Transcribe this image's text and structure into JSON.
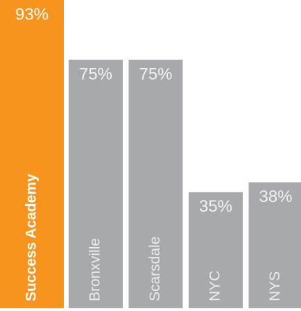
{
  "chart_data": {
    "type": "bar",
    "categories": [
      "Success Academy",
      "Bronxville",
      "Scarsdale",
      "NYC",
      "NYS"
    ],
    "values": [
      93,
      75,
      75,
      35,
      38
    ],
    "value_labels": [
      "93%",
      "75%",
      "75%",
      "35%",
      "38%"
    ],
    "colors": [
      "#f7941d",
      "#a7a9ac",
      "#a7a9ac",
      "#a7a9ac",
      "#a7a9ac"
    ]
  }
}
